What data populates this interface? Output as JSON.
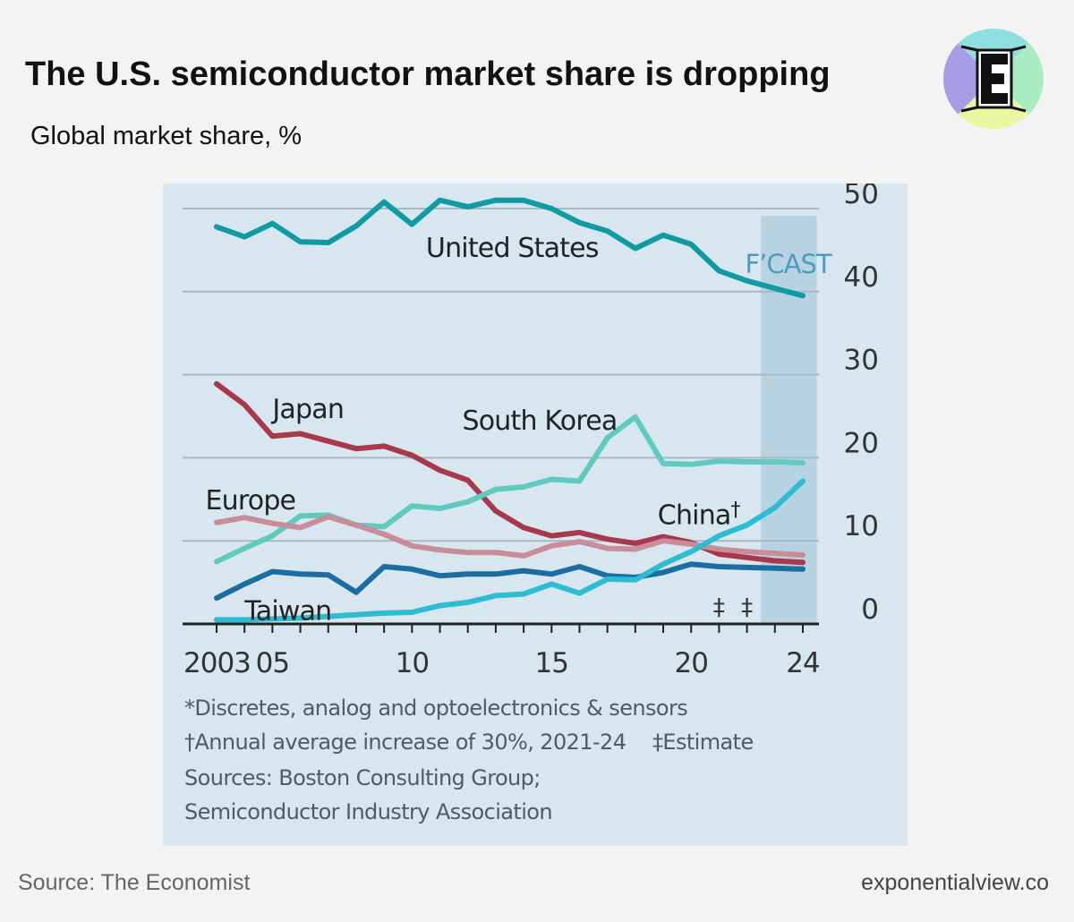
{
  "header": {
    "title": "The U.S. semiconductor market share is dropping",
    "subtitle": "Global market share, %"
  },
  "logo": {
    "icon": "exponential-view-e-logo-icon",
    "letter": "E"
  },
  "chart_data": {
    "type": "line",
    "y_axis": {
      "range": [
        0,
        50
      ],
      "ticks": [
        "50",
        "40",
        "30",
        "20",
        "10",
        "0"
      ],
      "position": "right"
    },
    "x_axis": {
      "range": [
        2003,
        2024
      ],
      "ticks": [
        {
          "year": 2003,
          "label": "2003"
        },
        {
          "year": 2005,
          "label": "05"
        },
        {
          "year": 2010,
          "label": "10"
        },
        {
          "year": 2015,
          "label": "15"
        },
        {
          "year": 2020,
          "label": "20"
        },
        {
          "year": 2024,
          "label": "24"
        }
      ]
    },
    "grid": true,
    "forecast": {
      "label": "F’CAST",
      "from": 2022.5,
      "to": 2024.5,
      "color": "#b7d3e2"
    },
    "estimate_markers": {
      "symbol": "‡",
      "years": [
        2021,
        2022
      ]
    },
    "series": [
      {
        "name": "United States",
        "color": "#0f9aa4",
        "label": {
          "text": "United States",
          "x": 2010.5,
          "y": 44.2
        },
        "years": [
          2003,
          2004,
          2005,
          2006,
          2007,
          2008,
          2009,
          2010,
          2011,
          2012,
          2013,
          2014,
          2015,
          2016,
          2017,
          2018,
          2019,
          2020,
          2021,
          2022,
          2023,
          2024
        ],
        "values": [
          47.8,
          46.6,
          48.2,
          46.0,
          45.9,
          47.9,
          50.8,
          48.1,
          51.0,
          50.2,
          51.0,
          51.0,
          50.0,
          48.3,
          47.3,
          45.2,
          46.8,
          45.7,
          42.5,
          41.3,
          40.4,
          39.5
        ]
      },
      {
        "name": "Japan",
        "color": "#a8384c",
        "label": {
          "text": "Japan",
          "x": 2005,
          "y": 24.8
        },
        "years": [
          2003,
          2004,
          2005,
          2006,
          2007,
          2008,
          2009,
          2010,
          2011,
          2012,
          2013,
          2014,
          2015,
          2016,
          2017,
          2018,
          2019,
          2020,
          2021,
          2022,
          2023,
          2024
        ],
        "values": [
          28.9,
          26.4,
          22.6,
          22.9,
          22.0,
          21.1,
          21.4,
          20.3,
          18.5,
          17.3,
          13.6,
          11.6,
          10.6,
          11.0,
          10.2,
          9.7,
          10.5,
          9.8,
          8.4,
          8.0,
          7.6,
          7.4
        ]
      },
      {
        "name": "South Korea",
        "color": "#5ecbbe",
        "label": {
          "text": "South Korea",
          "x": 2011.8,
          "y": 23.4
        },
        "years": [
          2003,
          2004,
          2005,
          2006,
          2007,
          2008,
          2009,
          2010,
          2011,
          2012,
          2013,
          2014,
          2015,
          2016,
          2017,
          2018,
          2019,
          2020,
          2021,
          2022,
          2023,
          2024
        ],
        "values": [
          7.5,
          9.1,
          10.6,
          13.0,
          13.1,
          11.9,
          11.7,
          14.2,
          13.9,
          14.7,
          16.2,
          16.5,
          17.4,
          17.2,
          22.4,
          24.9,
          19.3,
          19.2,
          19.6,
          19.5,
          19.5,
          19.4
        ]
      },
      {
        "name": "Europe",
        "color": "#c88c9a",
        "label": {
          "text": "Europe",
          "x": 2002.6,
          "y": 13.8
        },
        "years": [
          2003,
          2004,
          2005,
          2006,
          2007,
          2008,
          2009,
          2010,
          2011,
          2012,
          2013,
          2014,
          2015,
          2016,
          2017,
          2018,
          2019,
          2020,
          2021,
          2022,
          2023,
          2024
        ],
        "values": [
          12.2,
          12.8,
          12.1,
          11.6,
          12.9,
          11.9,
          10.8,
          9.4,
          8.9,
          8.6,
          8.6,
          8.2,
          9.4,
          9.9,
          9.1,
          9.0,
          10.0,
          9.6,
          9.0,
          8.7,
          8.5,
          8.3
        ]
      },
      {
        "name": "Taiwan",
        "color": "#1a6ea4",
        "label": {
          "text": "Taiwan",
          "x": 2004,
          "y": 0.5
        },
        "years": [
          2003,
          2004,
          2005,
          2006,
          2007,
          2008,
          2009,
          2010,
          2011,
          2012,
          2013,
          2014,
          2015,
          2016,
          2017,
          2018,
          2019,
          2020,
          2021,
          2022,
          2023,
          2024
        ],
        "values": [
          3.1,
          4.8,
          6.3,
          6.0,
          5.9,
          3.8,
          6.9,
          6.6,
          5.8,
          6.0,
          6.0,
          6.4,
          6.0,
          6.9,
          5.8,
          5.6,
          6.2,
          7.2,
          6.9,
          6.8,
          6.7,
          6.6
        ]
      },
      {
        "name": "China†",
        "color": "#2cbcd4",
        "label": {
          "text": "China",
          "mark": "†",
          "x": 2018.8,
          "y": 12.0
        },
        "years": [
          2003,
          2004,
          2005,
          2006,
          2007,
          2008,
          2009,
          2010,
          2011,
          2012,
          2013,
          2014,
          2015,
          2016,
          2017,
          2018,
          2019,
          2020,
          2021,
          2022,
          2023,
          2024
        ],
        "values": [
          0.5,
          0.5,
          0.6,
          0.7,
          0.9,
          1.1,
          1.3,
          1.4,
          2.2,
          2.6,
          3.4,
          3.6,
          4.8,
          3.7,
          5.4,
          5.3,
          7.2,
          8.7,
          10.6,
          11.9,
          14.0,
          17.2
        ]
      }
    ]
  },
  "notes": {
    "line1": "*Discretes, analog and optoelectronics & sensors",
    "line2": "†Annual average increase of 30%, 2021-24",
    "line2b": "‡Estimate",
    "line3": "Sources: Boston Consulting Group;",
    "line4": "Semiconductor Industry Association"
  },
  "footer": {
    "source": "Source: The Economist",
    "site": "exponentialview.co"
  }
}
